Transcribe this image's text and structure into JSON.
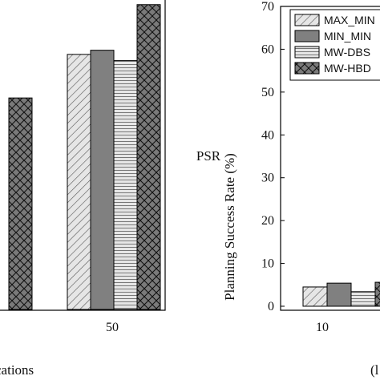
{
  "chart_data": [
    {
      "type": "bar",
      "panel": "left (partially cropped)",
      "categories": [
        "",
        "50"
      ],
      "series": [
        {
          "name": "MAX_MIN",
          "values": [
            null,
            61.5
          ]
        },
        {
          "name": "MIN_MIN",
          "values": [
            null,
            62.5
          ]
        },
        {
          "name": "MW-DBS",
          "values": [
            null,
            60.0
          ]
        },
        {
          "name": "MW-HBD",
          "values": [
            51.0,
            73.5
          ]
        }
      ],
      "xlabel": "cations",
      "ylabel": "",
      "ylim": [
        0,
        75
      ],
      "grid": false,
      "colors": {
        "MAX_MIN": "#dcdcdc",
        "MIN_MIN": "#808080",
        "MW-DBS": "#d9d9d9",
        "MW-HBD": "#7a7a7a"
      }
    },
    {
      "type": "bar",
      "panel": "right (partially cropped)",
      "categories": [
        "10"
      ],
      "series": [
        {
          "name": "MAX_MIN",
          "values": [
            4.5
          ]
        },
        {
          "name": "MIN_MIN",
          "values": [
            5.4
          ]
        },
        {
          "name": "MW-DBS",
          "values": [
            3.4
          ]
        },
        {
          "name": "MW-HBD",
          "values": [
            5.6
          ]
        }
      ],
      "ylabel_top": "PSR",
      "ylabel": "Planning Success Rate (%)",
      "yticks": [
        0,
        10,
        20,
        30,
        40,
        50,
        60,
        70
      ],
      "ylim": [
        0,
        70
      ],
      "legend": {
        "position": "top-right",
        "entries": [
          "MAX_MIN",
          "MIN_MIN",
          "MW-DBS",
          "MW-HBD"
        ]
      },
      "panel_label": "(l",
      "grid": false
    }
  ]
}
